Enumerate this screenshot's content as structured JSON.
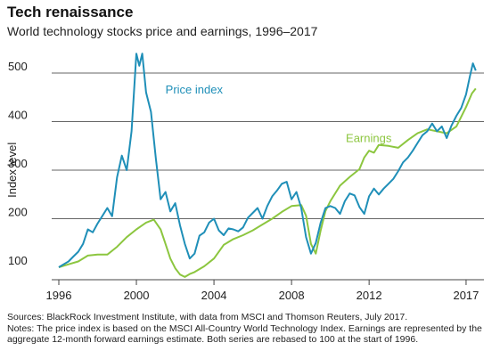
{
  "header": {
    "title": "Tech renaissance",
    "subtitle": "World technology stocks price and earnings, 1996–2017"
  },
  "footer": {
    "sources": "Sources: BlackRock Investment Institute, with data from MSCI and Thomson Reuters, July 2017.",
    "notes_line1": "Notes: The price index is based on the MSCI All-Country World Technology Index. Earnings are represented by the",
    "notes_line2": "aggregate 12-month forward earnings estimate. Both series are rebased to 100 at the start of 1996."
  },
  "colors": {
    "price": "#1f8fb8",
    "earnings": "#8cc63f",
    "grid": "#333333",
    "axis": "#444444"
  },
  "chart_data": {
    "type": "line",
    "title": "Tech renaissance",
    "subtitle": "World technology stocks price and earnings, 1996–2017",
    "xlabel": "",
    "ylabel": "Index level",
    "xlim": [
      1996,
      2017.6
    ],
    "ylim": [
      80,
      550
    ],
    "x_ticks": [
      1996,
      2000,
      2004,
      2008,
      2012,
      2017
    ],
    "y_ticks": [
      100,
      200,
      300,
      400,
      500
    ],
    "grid": "horizontal",
    "series": [
      {
        "name": "Price index",
        "label_position": [
          2001.5,
          458
        ],
        "points": [
          [
            1996.0,
            100
          ],
          [
            1996.25,
            106
          ],
          [
            1996.5,
            112
          ],
          [
            1996.75,
            122
          ],
          [
            1997.0,
            132
          ],
          [
            1997.25,
            148
          ],
          [
            1997.5,
            178
          ],
          [
            1997.75,
            172
          ],
          [
            1998.0,
            190
          ],
          [
            1998.25,
            206
          ],
          [
            1998.5,
            222
          ],
          [
            1998.75,
            205
          ],
          [
            1999.0,
            285
          ],
          [
            1999.25,
            330
          ],
          [
            1999.5,
            300
          ],
          [
            1999.75,
            380
          ],
          [
            2000.0,
            540
          ],
          [
            2000.15,
            515
          ],
          [
            2000.3,
            540
          ],
          [
            2000.5,
            460
          ],
          [
            2000.75,
            420
          ],
          [
            2001.0,
            325
          ],
          [
            2001.25,
            240
          ],
          [
            2001.5,
            255
          ],
          [
            2001.75,
            215
          ],
          [
            2002.0,
            232
          ],
          [
            2002.25,
            186
          ],
          [
            2002.5,
            148
          ],
          [
            2002.75,
            118
          ],
          [
            2003.0,
            128
          ],
          [
            2003.25,
            165
          ],
          [
            2003.5,
            172
          ],
          [
            2003.75,
            192
          ],
          [
            2004.0,
            200
          ],
          [
            2004.25,
            176
          ],
          [
            2004.5,
            166
          ],
          [
            2004.75,
            180
          ],
          [
            2005.0,
            178
          ],
          [
            2005.25,
            174
          ],
          [
            2005.5,
            182
          ],
          [
            2005.75,
            202
          ],
          [
            2006.0,
            212
          ],
          [
            2006.25,
            222
          ],
          [
            2006.5,
            200
          ],
          [
            2006.75,
            226
          ],
          [
            2007.0,
            246
          ],
          [
            2007.25,
            258
          ],
          [
            2007.5,
            272
          ],
          [
            2007.75,
            276
          ],
          [
            2008.0,
            240
          ],
          [
            2008.25,
            255
          ],
          [
            2008.5,
            222
          ],
          [
            2008.75,
            162
          ],
          [
            2009.0,
            128
          ],
          [
            2009.25,
            150
          ],
          [
            2009.5,
            192
          ],
          [
            2009.75,
            222
          ],
          [
            2010.0,
            226
          ],
          [
            2010.25,
            222
          ],
          [
            2010.5,
            210
          ],
          [
            2010.75,
            236
          ],
          [
            2011.0,
            252
          ],
          [
            2011.25,
            248
          ],
          [
            2011.5,
            224
          ],
          [
            2011.75,
            210
          ],
          [
            2012.0,
            246
          ],
          [
            2012.25,
            262
          ],
          [
            2012.5,
            250
          ],
          [
            2012.75,
            262
          ],
          [
            2013.0,
            272
          ],
          [
            2013.25,
            282
          ],
          [
            2013.5,
            298
          ],
          [
            2013.75,
            316
          ],
          [
            2014.0,
            326
          ],
          [
            2014.25,
            340
          ],
          [
            2014.5,
            356
          ],
          [
            2014.75,
            372
          ],
          [
            2015.0,
            380
          ],
          [
            2015.25,
            396
          ],
          [
            2015.5,
            380
          ],
          [
            2015.75,
            390
          ],
          [
            2016.0,
            366
          ],
          [
            2016.25,
            392
          ],
          [
            2016.5,
            412
          ],
          [
            2016.75,
            428
          ],
          [
            2017.0,
            456
          ],
          [
            2017.2,
            494
          ],
          [
            2017.35,
            520
          ],
          [
            2017.5,
            505
          ]
        ]
      },
      {
        "name": "Earnings",
        "label_position": [
          2010.8,
          358
        ],
        "points": [
          [
            1996.0,
            100
          ],
          [
            1996.5,
            106
          ],
          [
            1997.0,
            112
          ],
          [
            1997.5,
            124
          ],
          [
            1998.0,
            126
          ],
          [
            1998.5,
            126
          ],
          [
            1999.0,
            142
          ],
          [
            1999.5,
            162
          ],
          [
            2000.0,
            178
          ],
          [
            2000.5,
            192
          ],
          [
            2000.9,
            198
          ],
          [
            2001.25,
            178
          ],
          [
            2001.5,
            148
          ],
          [
            2001.75,
            118
          ],
          [
            2002.0,
            98
          ],
          [
            2002.25,
            85
          ],
          [
            2002.5,
            80
          ],
          [
            2002.75,
            86
          ],
          [
            2003.0,
            90
          ],
          [
            2003.5,
            102
          ],
          [
            2004.0,
            118
          ],
          [
            2004.5,
            146
          ],
          [
            2005.0,
            158
          ],
          [
            2005.5,
            166
          ],
          [
            2006.0,
            176
          ],
          [
            2006.5,
            188
          ],
          [
            2007.0,
            200
          ],
          [
            2007.5,
            214
          ],
          [
            2008.0,
            226
          ],
          [
            2008.5,
            228
          ],
          [
            2008.75,
            206
          ],
          [
            2009.0,
            148
          ],
          [
            2009.25,
            128
          ],
          [
            2009.5,
            176
          ],
          [
            2009.75,
            216
          ],
          [
            2010.0,
            236
          ],
          [
            2010.5,
            268
          ],
          [
            2011.0,
            286
          ],
          [
            2011.5,
            302
          ],
          [
            2011.75,
            326
          ],
          [
            2012.0,
            340
          ],
          [
            2012.25,
            336
          ],
          [
            2012.5,
            352
          ],
          [
            2013.0,
            350
          ],
          [
            2013.5,
            346
          ],
          [
            2014.0,
            362
          ],
          [
            2014.5,
            376
          ],
          [
            2015.0,
            384
          ],
          [
            2015.5,
            380
          ],
          [
            2016.0,
            376
          ],
          [
            2016.5,
            390
          ],
          [
            2017.0,
            430
          ],
          [
            2017.3,
            458
          ],
          [
            2017.5,
            468
          ]
        ]
      }
    ]
  }
}
